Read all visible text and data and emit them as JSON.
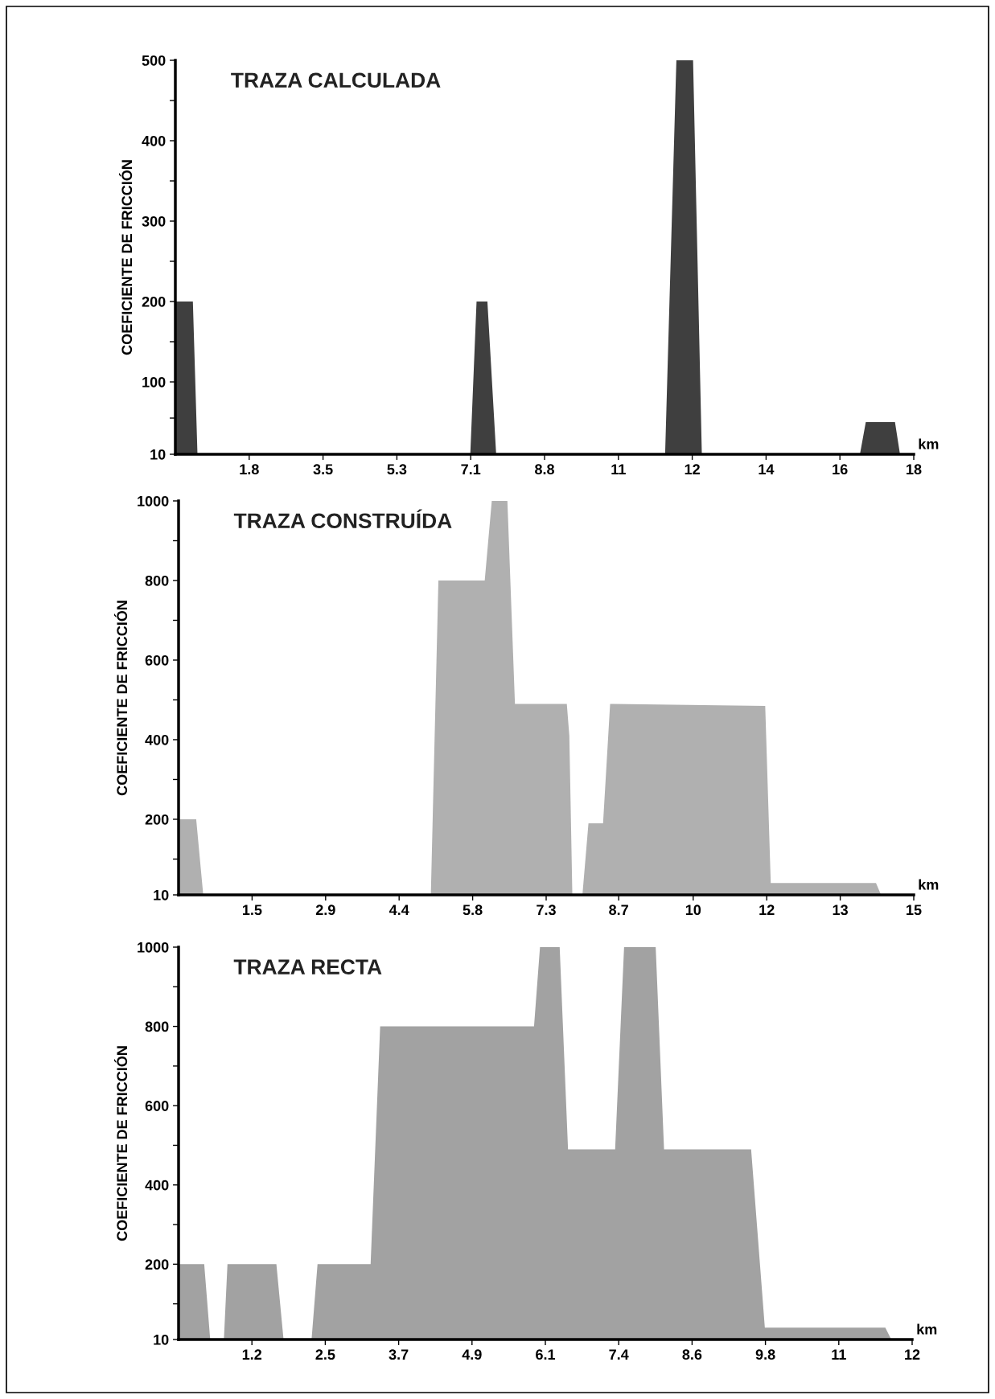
{
  "chart_data": [
    {
      "type": "area",
      "title": "TRAZA CALCULADA",
      "ylabel": "COEFICIENTE DE FRICCIÓN",
      "xlabel": "km",
      "x": [
        0,
        0.42,
        0.53,
        7.07,
        7.22,
        7.48,
        7.69,
        11.74,
        12.01,
        12.41,
        12.62,
        16.41,
        16.55,
        17.25,
        17.37,
        17.7
      ],
      "series": [
        {
          "color": "#3f3f3f",
          "values": [
            200,
            200,
            10,
            10,
            200,
            200,
            10,
            10,
            500,
            500,
            10,
            10,
            50,
            50,
            10,
            10
          ]
        }
      ],
      "xlim": [
        0,
        17.7
      ],
      "xticks": [
        {
          "value": 1.77,
          "label": "1.8"
        },
        {
          "value": 3.54,
          "label": "3.5"
        },
        {
          "value": 5.31,
          "label": "5.3"
        },
        {
          "value": 7.08,
          "label": "7.1"
        },
        {
          "value": 8.85,
          "label": "8.8"
        },
        {
          "value": 10.62,
          "label": "11"
        },
        {
          "value": 12.39,
          "label": "12"
        },
        {
          "value": 14.16,
          "label": "14"
        },
        {
          "value": 15.93,
          "label": "16"
        },
        {
          "value": 17.7,
          "label": "18"
        }
      ],
      "ylim": [
        10,
        500
      ],
      "yticks": [
        10,
        {
          "value": 55,
          "label": null
        },
        100,
        {
          "value": 150,
          "label": null
        },
        200,
        {
          "value": 250,
          "label": null
        },
        300,
        {
          "value": 350,
          "label": null
        },
        400,
        {
          "value": 450,
          "label": null
        },
        500
      ],
      "grid": false,
      "legend": false
    },
    {
      "type": "area",
      "title": "TRAZA CONSTRUÍDA",
      "ylabel": "COEFICIENTE DE FRICCIÓN",
      "xlabel": "km",
      "x": [
        0,
        0.35,
        0.49,
        5.01,
        5.16,
        6.08,
        6.22,
        6.53,
        6.68,
        7.71,
        7.76,
        7.82,
        8.02,
        8.14,
        8.43,
        8.57,
        11.65,
        11.76,
        13.85,
        13.95,
        14.6
      ],
      "series": [
        {
          "color": "#b0b0b0",
          "values": [
            200,
            200,
            10,
            10,
            800,
            800,
            1000,
            1000,
            490,
            490,
            410,
            10,
            10,
            190,
            190,
            490,
            485,
            40,
            40,
            10,
            10
          ]
        }
      ],
      "xlim": [
        0,
        14.6
      ],
      "xticks": [
        {
          "value": 1.46,
          "label": "1.5"
        },
        {
          "value": 2.92,
          "label": "2.9"
        },
        {
          "value": 4.38,
          "label": "4.4"
        },
        {
          "value": 5.84,
          "label": "5.8"
        },
        {
          "value": 7.3,
          "label": "7.3"
        },
        {
          "value": 8.74,
          "label": "8.7"
        },
        {
          "value": 10.22,
          "label": "10"
        },
        {
          "value": 11.68,
          "label": "12"
        },
        {
          "value": 13.14,
          "label": "13"
        },
        {
          "value": 14.6,
          "label": "15"
        }
      ],
      "ylim": [
        10,
        1000
      ],
      "yticks": [
        10,
        {
          "value": 100,
          "label": null
        },
        200,
        {
          "value": 300,
          "label": null
        },
        400,
        {
          "value": 500,
          "label": null
        },
        600,
        {
          "value": 700,
          "label": null
        },
        800,
        {
          "value": 900,
          "label": null
        },
        1000
      ],
      "grid": false,
      "legend": false
    },
    {
      "type": "area",
      "title": "TRAZA RECTA",
      "ylabel": "COEFICIENTE DE FRICCIÓN",
      "xlabel": "km",
      "x": [
        0,
        0.43,
        0.53,
        0.76,
        0.82,
        1.64,
        1.76,
        2.23,
        2.33,
        3.22,
        3.38,
        5.96,
        6.06,
        6.39,
        6.53,
        7.32,
        7.47,
        8.0,
        8.14,
        9.6,
        9.83,
        11.85,
        11.95,
        12.3
      ],
      "series": [
        {
          "color": "#a2a2a2",
          "values": [
            200,
            200,
            10,
            10,
            200,
            200,
            10,
            10,
            200,
            200,
            800,
            800,
            1000,
            1000,
            490,
            490,
            1000,
            1000,
            490,
            490,
            40,
            40,
            10,
            10
          ]
        }
      ],
      "xlim": [
        0,
        12.3
      ],
      "xticks": [
        {
          "value": 1.23,
          "label": "1.2"
        },
        {
          "value": 2.46,
          "label": "2.5"
        },
        {
          "value": 3.69,
          "label": "3.7"
        },
        {
          "value": 4.92,
          "label": "4.9"
        },
        {
          "value": 6.15,
          "label": "6.1"
        },
        {
          "value": 7.38,
          "label": "7.4"
        },
        {
          "value": 8.61,
          "label": "8.6"
        },
        {
          "value": 9.84,
          "label": "9.8"
        },
        {
          "value": 11.07,
          "label": "11"
        },
        {
          "value": 12.3,
          "label": "12"
        }
      ],
      "ylim": [
        10,
        1000
      ],
      "yticks": [
        10,
        {
          "value": 100,
          "label": null
        },
        200,
        {
          "value": 300,
          "label": null
        },
        400,
        {
          "value": 500,
          "label": null
        },
        600,
        {
          "value": 700,
          "label": null
        },
        800,
        {
          "value": 900,
          "label": null
        },
        1000
      ],
      "grid": false,
      "legend": false
    }
  ]
}
